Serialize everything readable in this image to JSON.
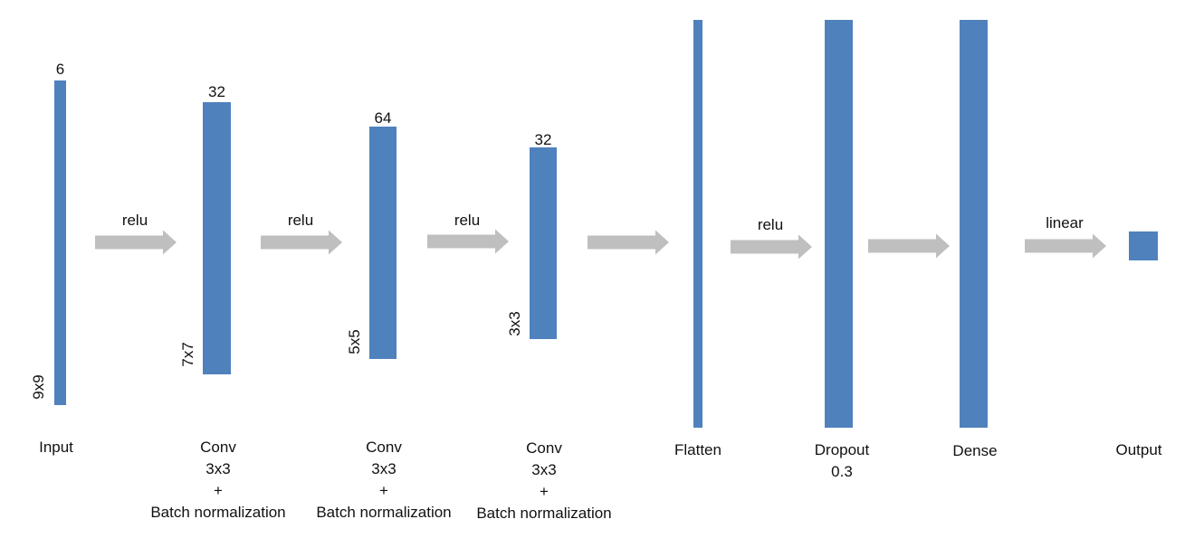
{
  "colors": {
    "layer_fill": "#4f81bd",
    "arrow_fill": "#bfbfbf",
    "text": "#111111"
  },
  "arrows": [
    {
      "id": "arrow-1",
      "label": "relu"
    },
    {
      "id": "arrow-2",
      "label": "relu"
    },
    {
      "id": "arrow-3",
      "label": "relu"
    },
    {
      "id": "arrow-4",
      "label": ""
    },
    {
      "id": "arrow-5",
      "label": "relu"
    },
    {
      "id": "arrow-6",
      "label": ""
    },
    {
      "id": "arrow-7",
      "label": "linear"
    }
  ],
  "layers": [
    {
      "id": "input",
      "top_label": "6",
      "side_label": "9x9",
      "caption": [
        "Input"
      ]
    },
    {
      "id": "conv1",
      "top_label": "32",
      "side_label": "7x7",
      "caption": [
        "Conv",
        "3x3",
        "+",
        "Batch normalization"
      ]
    },
    {
      "id": "conv2",
      "top_label": "64",
      "side_label": "5x5",
      "caption": [
        "Conv",
        "3x3",
        "+",
        "Batch normalization"
      ]
    },
    {
      "id": "conv3",
      "top_label": "32",
      "side_label": "3x3",
      "caption": [
        "Conv",
        "3x3",
        "+",
        "Batch normalization"
      ]
    },
    {
      "id": "flatten",
      "top_label": "",
      "side_label": "",
      "caption": [
        "Flatten"
      ]
    },
    {
      "id": "dropout",
      "top_label": "",
      "side_label": "",
      "caption": [
        "Dropout",
        "0.3"
      ]
    },
    {
      "id": "dense",
      "top_label": "",
      "side_label": "",
      "caption": [
        "Dense"
      ]
    },
    {
      "id": "output",
      "top_label": "",
      "side_label": "",
      "caption": [
        "Output"
      ]
    }
  ]
}
